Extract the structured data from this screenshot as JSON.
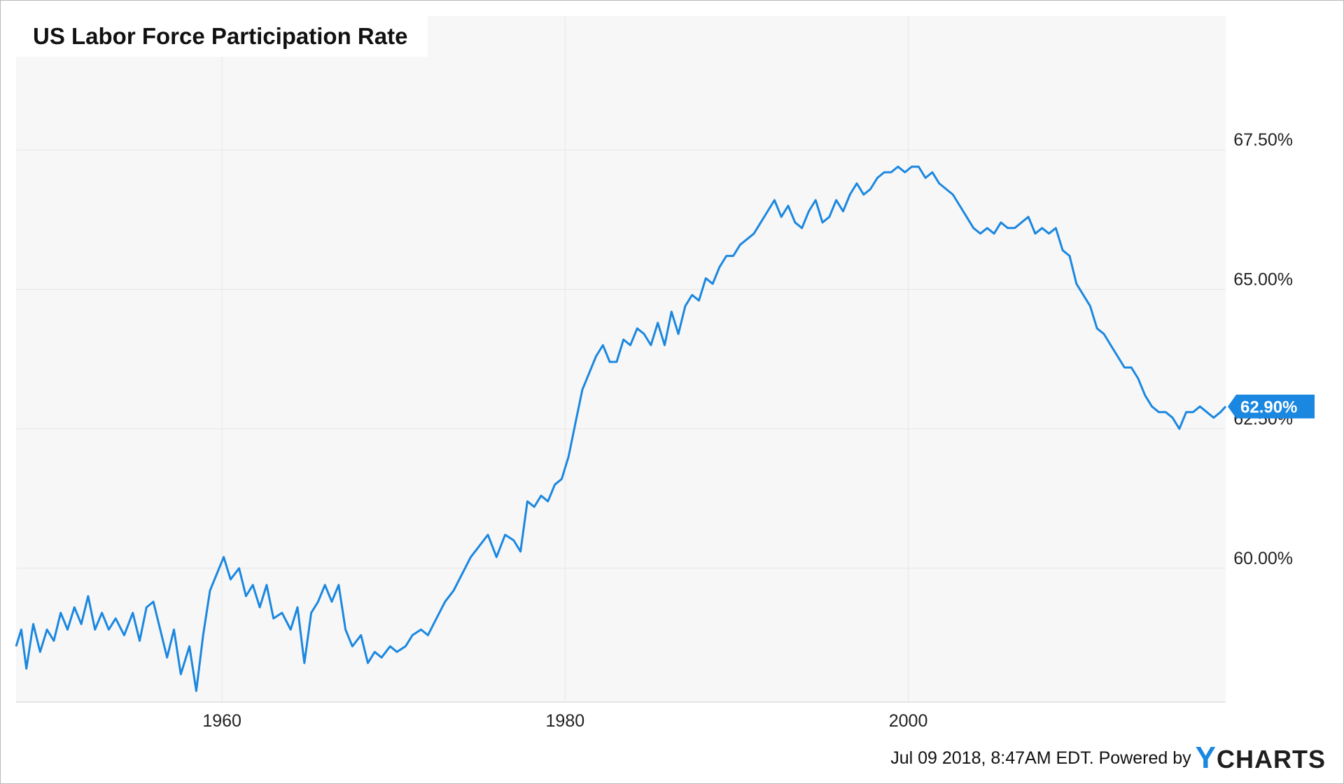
{
  "chart_data": {
    "type": "line",
    "title": "US Labor Force Participation Rate",
    "xlabel": "",
    "ylabel": "",
    "xlim": [
      1948.0,
      2018.5
    ],
    "ylim": [
      57.6,
      69.9
    ],
    "x_ticks": [
      {
        "value": 1960,
        "label": "1960"
      },
      {
        "value": 1980,
        "label": "1980"
      },
      {
        "value": 2000,
        "label": "2000"
      }
    ],
    "y_ticks": [
      {
        "value": 60.0,
        "label": "60.00%"
      },
      {
        "value": 62.5,
        "label": "62.50%"
      },
      {
        "value": 65.0,
        "label": "65.00%"
      },
      {
        "value": 67.5,
        "label": "67.50%"
      }
    ],
    "grid": true,
    "legend": "none",
    "last_value_label": "62.90%",
    "series": [
      {
        "color": "#1a87e0",
        "points": [
          [
            1948.0,
            58.6
          ],
          [
            1948.3,
            58.9
          ],
          [
            1948.6,
            58.2
          ],
          [
            1949.0,
            59.0
          ],
          [
            1949.4,
            58.5
          ],
          [
            1949.8,
            58.9
          ],
          [
            1950.2,
            58.7
          ],
          [
            1950.6,
            59.2
          ],
          [
            1951.0,
            58.9
          ],
          [
            1951.4,
            59.3
          ],
          [
            1951.8,
            59.0
          ],
          [
            1952.2,
            59.5
          ],
          [
            1952.6,
            58.9
          ],
          [
            1953.0,
            59.2
          ],
          [
            1953.4,
            58.9
          ],
          [
            1953.8,
            59.1
          ],
          [
            1954.3,
            58.8
          ],
          [
            1954.8,
            59.2
          ],
          [
            1955.2,
            58.7
          ],
          [
            1955.6,
            59.3
          ],
          [
            1956.0,
            59.4
          ],
          [
            1956.4,
            58.9
          ],
          [
            1956.8,
            58.4
          ],
          [
            1957.2,
            58.9
          ],
          [
            1957.6,
            58.1
          ],
          [
            1958.1,
            58.6
          ],
          [
            1958.5,
            57.8
          ],
          [
            1958.9,
            58.8
          ],
          [
            1959.3,
            59.6
          ],
          [
            1959.7,
            59.9
          ],
          [
            1960.1,
            60.2
          ],
          [
            1960.5,
            59.8
          ],
          [
            1961.0,
            60.0
          ],
          [
            1961.4,
            59.5
          ],
          [
            1961.8,
            59.7
          ],
          [
            1962.2,
            59.3
          ],
          [
            1962.6,
            59.7
          ],
          [
            1963.0,
            59.1
          ],
          [
            1963.5,
            59.2
          ],
          [
            1964.0,
            58.9
          ],
          [
            1964.4,
            59.3
          ],
          [
            1964.8,
            58.3
          ],
          [
            1965.2,
            59.2
          ],
          [
            1965.6,
            59.4
          ],
          [
            1966.0,
            59.7
          ],
          [
            1966.4,
            59.4
          ],
          [
            1966.8,
            59.7
          ],
          [
            1967.2,
            58.9
          ],
          [
            1967.6,
            58.6
          ],
          [
            1968.1,
            58.8
          ],
          [
            1968.5,
            58.3
          ],
          [
            1968.9,
            58.5
          ],
          [
            1969.3,
            58.4
          ],
          [
            1969.8,
            58.6
          ],
          [
            1970.2,
            58.5
          ],
          [
            1970.7,
            58.6
          ],
          [
            1971.1,
            58.8
          ],
          [
            1971.6,
            58.9
          ],
          [
            1972.0,
            58.8
          ],
          [
            1972.5,
            59.1
          ],
          [
            1973.0,
            59.4
          ],
          [
            1973.5,
            59.6
          ],
          [
            1974.0,
            59.9
          ],
          [
            1974.5,
            60.2
          ],
          [
            1975.0,
            60.4
          ],
          [
            1975.5,
            60.6
          ],
          [
            1976.0,
            60.2
          ],
          [
            1976.5,
            60.6
          ],
          [
            1977.0,
            60.5
          ],
          [
            1977.4,
            60.3
          ],
          [
            1977.8,
            61.2
          ],
          [
            1978.2,
            61.1
          ],
          [
            1978.6,
            61.3
          ],
          [
            1979.0,
            61.2
          ],
          [
            1979.4,
            61.5
          ],
          [
            1979.8,
            61.6
          ],
          [
            1980.2,
            62.0
          ],
          [
            1980.6,
            62.6
          ],
          [
            1981.0,
            63.2
          ],
          [
            1981.4,
            63.5
          ],
          [
            1981.8,
            63.8
          ],
          [
            1982.2,
            64.0
          ],
          [
            1982.6,
            63.7
          ],
          [
            1983.0,
            63.7
          ],
          [
            1983.4,
            64.1
          ],
          [
            1983.8,
            64.0
          ],
          [
            1984.2,
            64.3
          ],
          [
            1984.6,
            64.2
          ],
          [
            1985.0,
            64.0
          ],
          [
            1985.4,
            64.4
          ],
          [
            1985.8,
            64.0
          ],
          [
            1986.2,
            64.6
          ],
          [
            1986.6,
            64.2
          ],
          [
            1987.0,
            64.7
          ],
          [
            1987.4,
            64.9
          ],
          [
            1987.8,
            64.8
          ],
          [
            1988.2,
            65.2
          ],
          [
            1988.6,
            65.1
          ],
          [
            1989.0,
            65.4
          ],
          [
            1989.4,
            65.6
          ],
          [
            1989.8,
            65.6
          ],
          [
            1990.2,
            65.8
          ],
          [
            1990.6,
            65.9
          ],
          [
            1991.0,
            66.0
          ],
          [
            1991.4,
            66.2
          ],
          [
            1991.8,
            66.4
          ],
          [
            1992.2,
            66.6
          ],
          [
            1992.6,
            66.3
          ],
          [
            1993.0,
            66.5
          ],
          [
            1993.4,
            66.2
          ],
          [
            1993.8,
            66.1
          ],
          [
            1994.2,
            66.4
          ],
          [
            1994.6,
            66.6
          ],
          [
            1995.0,
            66.2
          ],
          [
            1995.4,
            66.3
          ],
          [
            1995.8,
            66.6
          ],
          [
            1996.2,
            66.4
          ],
          [
            1996.6,
            66.7
          ],
          [
            1997.0,
            66.9
          ],
          [
            1997.4,
            66.7
          ],
          [
            1997.8,
            66.8
          ],
          [
            1998.2,
            67.0
          ],
          [
            1998.6,
            67.1
          ],
          [
            1999.0,
            67.1
          ],
          [
            1999.4,
            67.2
          ],
          [
            1999.8,
            67.1
          ],
          [
            2000.2,
            67.2
          ],
          [
            2000.6,
            67.2
          ],
          [
            2001.0,
            67.0
          ],
          [
            2001.4,
            67.1
          ],
          [
            2001.8,
            66.9
          ],
          [
            2002.2,
            66.8
          ],
          [
            2002.6,
            66.7
          ],
          [
            2003.0,
            66.5
          ],
          [
            2003.4,
            66.3
          ],
          [
            2003.8,
            66.1
          ],
          [
            2004.2,
            66.0
          ],
          [
            2004.6,
            66.1
          ],
          [
            2005.0,
            66.0
          ],
          [
            2005.4,
            66.2
          ],
          [
            2005.8,
            66.1
          ],
          [
            2006.2,
            66.1
          ],
          [
            2006.6,
            66.2
          ],
          [
            2007.0,
            66.3
          ],
          [
            2007.4,
            66.0
          ],
          [
            2007.8,
            66.1
          ],
          [
            2008.2,
            66.0
          ],
          [
            2008.6,
            66.1
          ],
          [
            2009.0,
            65.7
          ],
          [
            2009.4,
            65.6
          ],
          [
            2009.8,
            65.1
          ],
          [
            2010.2,
            64.9
          ],
          [
            2010.6,
            64.7
          ],
          [
            2011.0,
            64.3
          ],
          [
            2011.4,
            64.2
          ],
          [
            2011.8,
            64.0
          ],
          [
            2012.2,
            63.8
          ],
          [
            2012.6,
            63.6
          ],
          [
            2013.0,
            63.6
          ],
          [
            2013.4,
            63.4
          ],
          [
            2013.8,
            63.1
          ],
          [
            2014.2,
            62.9
          ],
          [
            2014.6,
            62.8
          ],
          [
            2015.0,
            62.8
          ],
          [
            2015.4,
            62.7
          ],
          [
            2015.8,
            62.5
          ],
          [
            2016.2,
            62.8
          ],
          [
            2016.6,
            62.8
          ],
          [
            2017.0,
            62.9
          ],
          [
            2017.4,
            62.8
          ],
          [
            2017.8,
            62.7
          ],
          [
            2018.2,
            62.8
          ],
          [
            2018.5,
            62.9
          ]
        ]
      }
    ]
  },
  "footer": {
    "timestamp_text": "Jul 09 2018, 8:47AM EDT. Powered by",
    "logo_y": "Y",
    "logo_rest": "CHARTS"
  },
  "colors": {
    "line": "#1a87e0",
    "plot_background": "#f7f7f7",
    "grid": "#e6e6e6",
    "badge": "#1a87e0"
  }
}
